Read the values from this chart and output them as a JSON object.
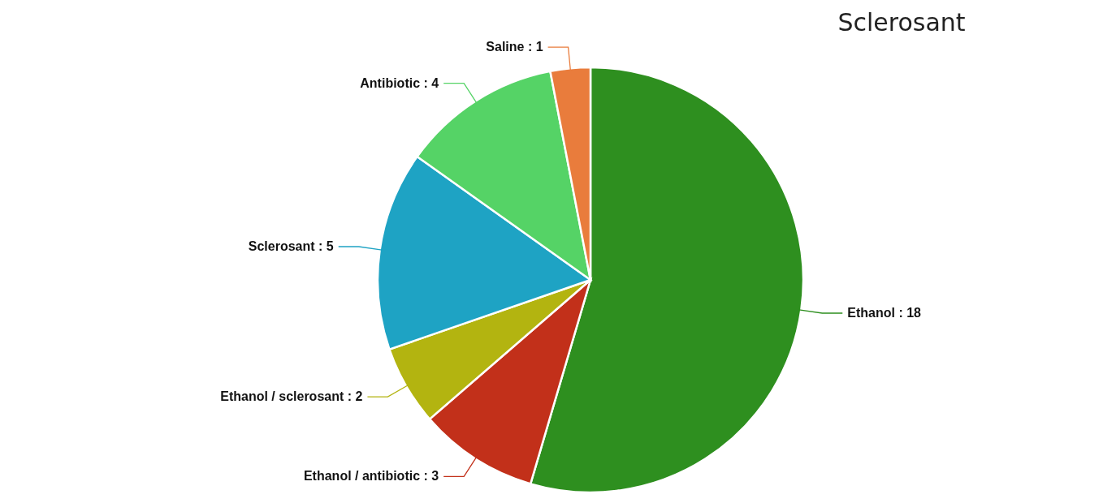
{
  "chart_data": {
    "type": "pie",
    "title": "Sclerosant",
    "categories": [
      "Ethanol",
      "Ethanol / antibiotic",
      "Ethanol / sclerosant",
      "Sclerosant",
      "Antibiotic",
      "Saline"
    ],
    "values": [
      18,
      3,
      2,
      5,
      4,
      1
    ],
    "colors": [
      "#2e8f1f",
      "#c2301a",
      "#b3b410",
      "#1ea3c4",
      "#55d366",
      "#e97c3c"
    ],
    "value_labels": [
      ": 18",
      ": 3",
      ": 2",
      ": 5",
      ": 4",
      ": 1"
    ]
  }
}
